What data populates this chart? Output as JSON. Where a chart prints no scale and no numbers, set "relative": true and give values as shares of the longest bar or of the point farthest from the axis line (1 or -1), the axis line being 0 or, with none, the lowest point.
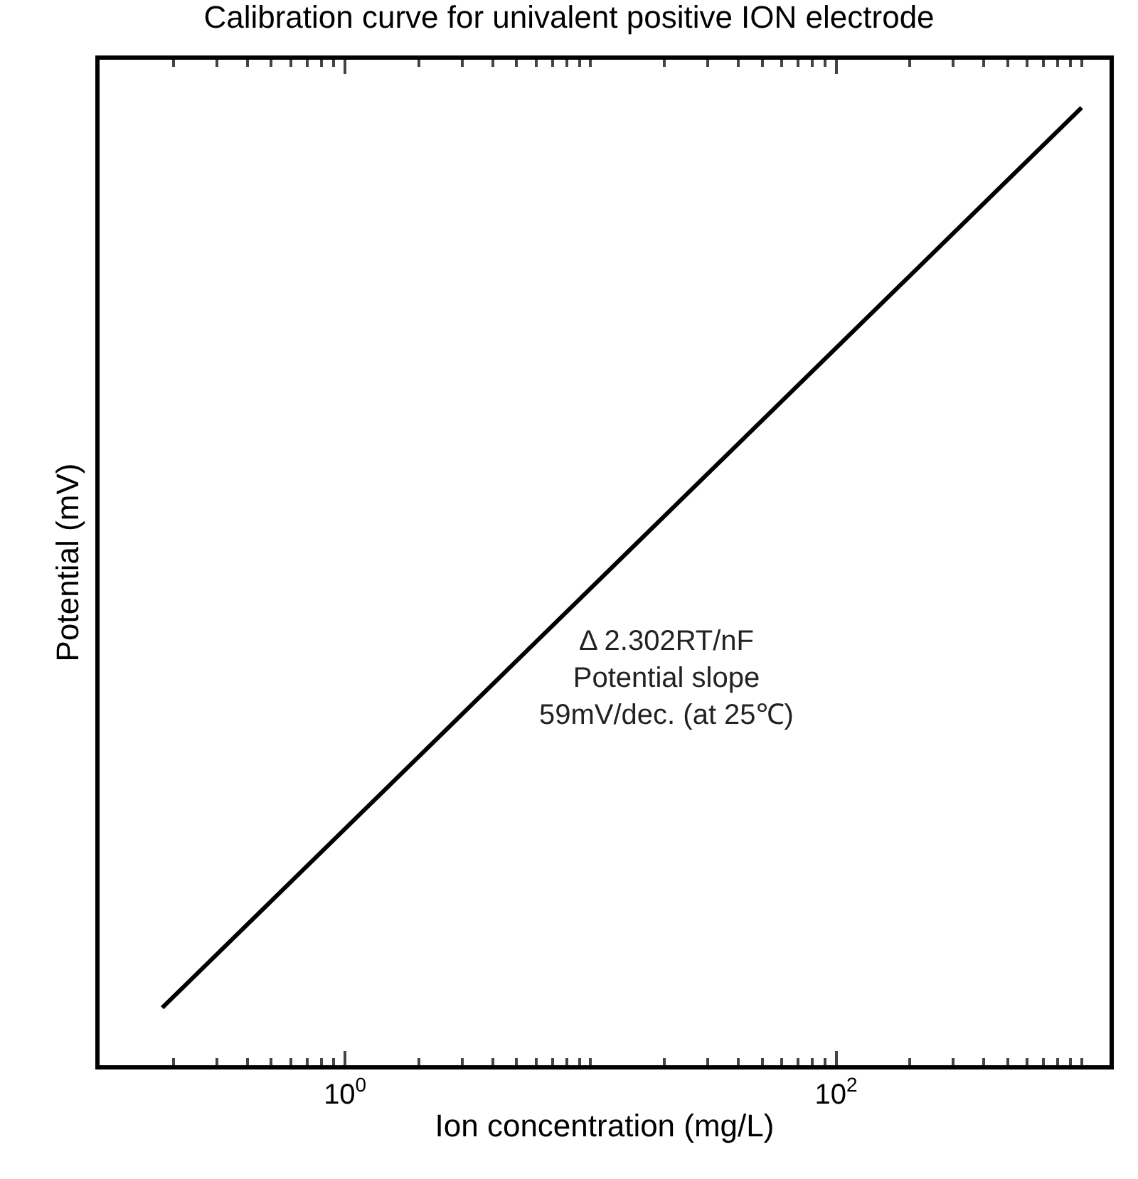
{
  "chart_data": {
    "type": "line",
    "title": "Calibration curve for univalent positive ION electrode",
    "xlabel": "Ion concentration (mg/L)",
    "ylabel": "Potential (mV)",
    "x": [
      0.18,
      1000
    ],
    "series": [
      {
        "color": "#000000",
        "values": [
          0.06,
          1
        ]
      }
    ],
    "relative": true,
    "log": "x",
    "xlim": [
      0.1,
      1300
    ],
    "xticks": [
      {
        "value": 1,
        "label": "10$^{0}$"
      },
      {
        "value": 100,
        "label": "10$^{2}$"
      }
    ],
    "tick_labels": "x",
    "grid": false,
    "marker": "none",
    "line_style": "solid",
    "annotations": [
      "Δ 2.302RT/nF\nPotential slope\n59mV/dec. (at 25℃)"
    ]
  }
}
